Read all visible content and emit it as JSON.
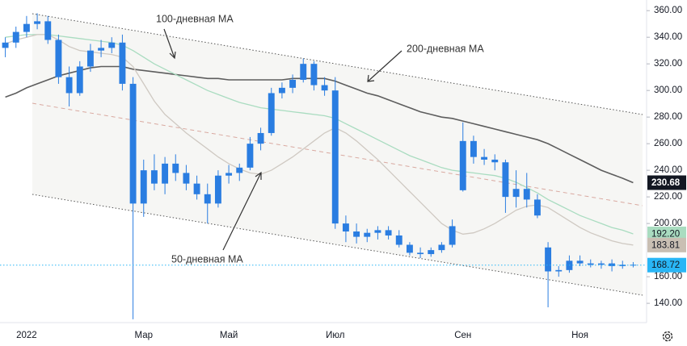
{
  "chart_data": {
    "type": "candlestick",
    "categories": [
      null,
      null,
      "2022",
      null,
      null,
      null,
      null,
      null,
      null,
      null,
      null,
      null,
      null,
      "Мар",
      null,
      null,
      null,
      null,
      null,
      null,
      null,
      "Май",
      null,
      null,
      null,
      null,
      null,
      null,
      null,
      null,
      null,
      "Июл",
      null,
      null,
      null,
      null,
      null,
      null,
      null,
      null,
      null,
      null,
      null,
      "Сен",
      null,
      null,
      null,
      null,
      null,
      null,
      null,
      null,
      null,
      null,
      "Ноя",
      null,
      null,
      null,
      null,
      null
    ],
    "candles": {
      "color": "#2a7de1",
      "open": [
        332,
        336,
        344,
        350,
        352,
        338,
        310,
        298,
        318,
        330,
        332,
        336,
        305,
        215,
        240,
        230,
        245,
        238,
        230,
        222,
        215,
        236,
        238,
        242,
        260,
        268,
        298,
        302,
        308,
        320,
        304,
        300,
        200,
        194,
        190,
        193,
        195,
        191,
        184,
        178,
        177,
        180,
        184,
        225,
        262,
        250,
        248,
        246,
        220,
        226,
        218,
        182,
        164,
        165,
        172,
        170,
        169,
        170,
        168,
        169
      ],
      "high": [
        340,
        348,
        356,
        358,
        356,
        342,
        318,
        322,
        335,
        338,
        340,
        342,
        310,
        248,
        252,
        250,
        252,
        244,
        236,
        230,
        240,
        244,
        245,
        265,
        272,
        302,
        306,
        312,
        324,
        322,
        310,
        310,
        206,
        200,
        196,
        198,
        198,
        195,
        186,
        182,
        182,
        186,
        203,
        276,
        266,
        256,
        252,
        248,
        240,
        238,
        222,
        186,
        168,
        176,
        176,
        173,
        172,
        173,
        172,
        171
      ],
      "low": [
        325,
        332,
        340,
        346,
        335,
        305,
        288,
        296,
        314,
        325,
        328,
        300,
        128,
        205,
        225,
        222,
        232,
        225,
        218,
        200,
        212,
        230,
        232,
        240,
        255,
        266,
        294,
        298,
        306,
        300,
        296,
        196,
        186,
        185,
        186,
        188,
        188,
        182,
        176,
        174,
        175,
        178,
        182,
        224,
        245,
        244,
        240,
        208,
        212,
        212,
        204,
        137,
        160,
        163,
        168,
        167,
        166,
        164,
        166,
        167
      ],
      "close": [
        336,
        344,
        350,
        352,
        338,
        310,
        298,
        318,
        330,
        332,
        336,
        305,
        215,
        240,
        230,
        245,
        238,
        230,
        222,
        215,
        236,
        238,
        242,
        260,
        268,
        298,
        302,
        308,
        320,
        304,
        300,
        200,
        194,
        190,
        193,
        195,
        191,
        184,
        178,
        177,
        180,
        184,
        198,
        262,
        250,
        248,
        246,
        220,
        226,
        218,
        206,
        164,
        165,
        172,
        170,
        169,
        170,
        168,
        169,
        168.72
      ]
    },
    "series": [
      {
        "name": "200-дневная MA",
        "color": "#5d5d5d",
        "values": [
          295,
          298,
          302,
          305,
          308,
          311,
          313,
          315,
          317,
          318,
          318,
          318,
          316,
          315,
          314,
          313,
          312,
          311,
          310,
          309,
          309,
          308,
          308,
          308,
          308,
          308,
          308,
          309,
          309,
          309,
          309,
          307,
          304,
          301,
          298,
          296,
          293,
          290,
          287,
          284,
          282,
          280,
          279,
          277,
          275,
          273,
          271,
          269,
          267,
          265,
          263,
          260,
          256,
          252,
          248,
          244,
          240,
          237,
          234,
          230.68
        ]
      },
      {
        "name": "100-дневная MA",
        "color": "#a9dcc0",
        "values": [
          340,
          341,
          342,
          342,
          342,
          341,
          340,
          339,
          338,
          337,
          336,
          334,
          330,
          325,
          320,
          316,
          312,
          308,
          304,
          300,
          297,
          294,
          291,
          289,
          287,
          286,
          285,
          284,
          283,
          282,
          281,
          279,
          275,
          271,
          267,
          263,
          259,
          255,
          251,
          248,
          245,
          242,
          240,
          239,
          238,
          237,
          236,
          234,
          231,
          227,
          223,
          218,
          214,
          210,
          206,
          203,
          200,
          197,
          195,
          192.2
        ]
      },
      {
        "name": "50-дневная MA",
        "color": "#cfc9c2",
        "values": [
          335,
          338,
          340,
          342,
          342,
          338,
          333,
          330,
          329,
          328,
          327,
          325,
          318,
          305,
          292,
          282,
          275,
          268,
          262,
          256,
          250,
          245,
          241,
          238,
          237,
          240,
          245,
          250,
          256,
          262,
          268,
          272,
          268,
          262,
          255,
          248,
          240,
          232,
          224,
          216,
          208,
          200,
          195,
          192,
          193,
          196,
          200,
          205,
          210,
          213,
          214,
          212,
          207,
          202,
          197,
          193,
          190,
          187,
          185,
          183.81
        ]
      }
    ],
    "price_labels": [
      {
        "value": 230.68,
        "label": "230.68",
        "color": "#131722",
        "text_color": "#ffffff"
      },
      {
        "value": 192.2,
        "label": "192.20",
        "color": "#a9dcc0",
        "text_color": "#131722"
      },
      {
        "value": 183.81,
        "label": "183.81",
        "color": "#c9bfb3",
        "text_color": "#131722"
      },
      {
        "value": 168.72,
        "label": "168.72",
        "color": "#29b6f6",
        "text_color": "#131722"
      }
    ],
    "ylim": [
      125.5,
      368
    ],
    "yticks": [
      {
        "value": 140,
        "label": "140.00"
      },
      {
        "value": 160,
        "label": "160.00"
      },
      {
        "value": 200,
        "label": "200.00"
      },
      {
        "value": 220,
        "label": "220.00"
      },
      {
        "value": 240,
        "label": "240.00"
      },
      {
        "value": 260,
        "label": "260.00"
      },
      {
        "value": 280,
        "label": "280.00"
      },
      {
        "value": 300,
        "label": "300.00"
      },
      {
        "value": 320,
        "label": "320.00"
      },
      {
        "value": 340,
        "label": "340.00"
      },
      {
        "value": 360,
        "label": "360.00"
      }
    ],
    "grid": false,
    "annotations": [
      "100-дневная MA",
      "200-дневная MA",
      "50-дневная MA"
    ]
  }
}
